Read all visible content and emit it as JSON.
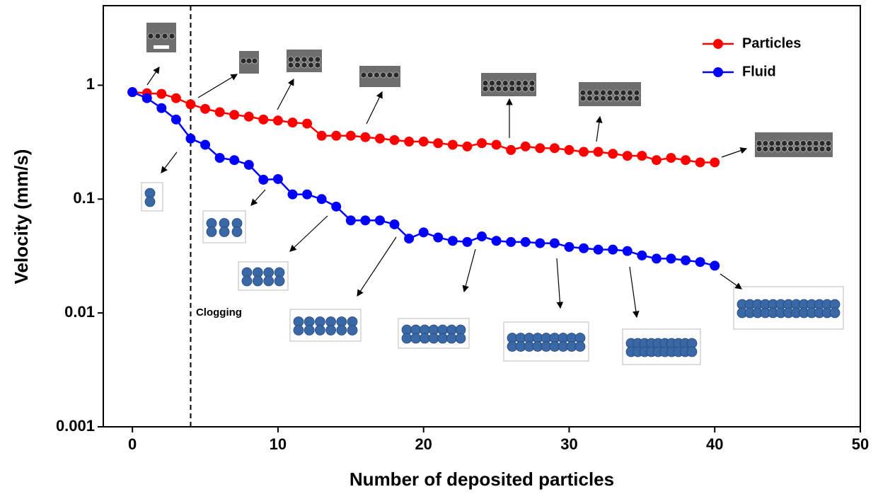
{
  "chart_data": {
    "type": "line",
    "log_y": true,
    "x_label": "Number of deposited particles",
    "y_label": "Velocity (mm/s)",
    "x": [
      0,
      1,
      2,
      3,
      4,
      5,
      6,
      7,
      8,
      9,
      10,
      11,
      12,
      13,
      14,
      15,
      16,
      17,
      18,
      19,
      20,
      21,
      22,
      23,
      24,
      25,
      26,
      27,
      28,
      29,
      30,
      31,
      32,
      33,
      34,
      35,
      36,
      37,
      38,
      39,
      40
    ],
    "series": [
      {
        "name": "Particles",
        "color": "#ff0000",
        "values": [
          0.87,
          0.85,
          0.84,
          0.77,
          0.68,
          0.62,
          0.58,
          0.55,
          0.53,
          0.5,
          0.49,
          0.47,
          0.46,
          0.36,
          0.36,
          0.36,
          0.35,
          0.34,
          0.33,
          0.32,
          0.32,
          0.31,
          0.3,
          0.29,
          0.31,
          0.3,
          0.27,
          0.29,
          0.28,
          0.28,
          0.27,
          0.26,
          0.26,
          0.25,
          0.24,
          0.24,
          0.22,
          0.23,
          0.22,
          0.21,
          0.21
        ]
      },
      {
        "name": "Fluid",
        "color": "#0000ff",
        "values": [
          0.87,
          0.77,
          0.63,
          0.5,
          0.34,
          0.3,
          0.23,
          0.22,
          0.2,
          0.148,
          0.15,
          0.11,
          0.11,
          0.1,
          0.086,
          0.065,
          0.065,
          0.065,
          0.06,
          0.045,
          0.051,
          0.046,
          0.043,
          0.042,
          0.047,
          0.043,
          0.042,
          0.042,
          0.041,
          0.041,
          0.038,
          0.037,
          0.036,
          0.036,
          0.035,
          0.032,
          0.03,
          0.03,
          0.029,
          0.028,
          0.026
        ]
      }
    ],
    "xlim": [
      -2,
      50
    ],
    "xticks": [
      0,
      10,
      20,
      30,
      40,
      50
    ],
    "ylim": [
      0.001,
      5
    ],
    "yticks": [
      0.001,
      0.01,
      0.1,
      1
    ],
    "legend": "top-right",
    "vline": {
      "x": 4,
      "label": "Clogging"
    }
  }
}
